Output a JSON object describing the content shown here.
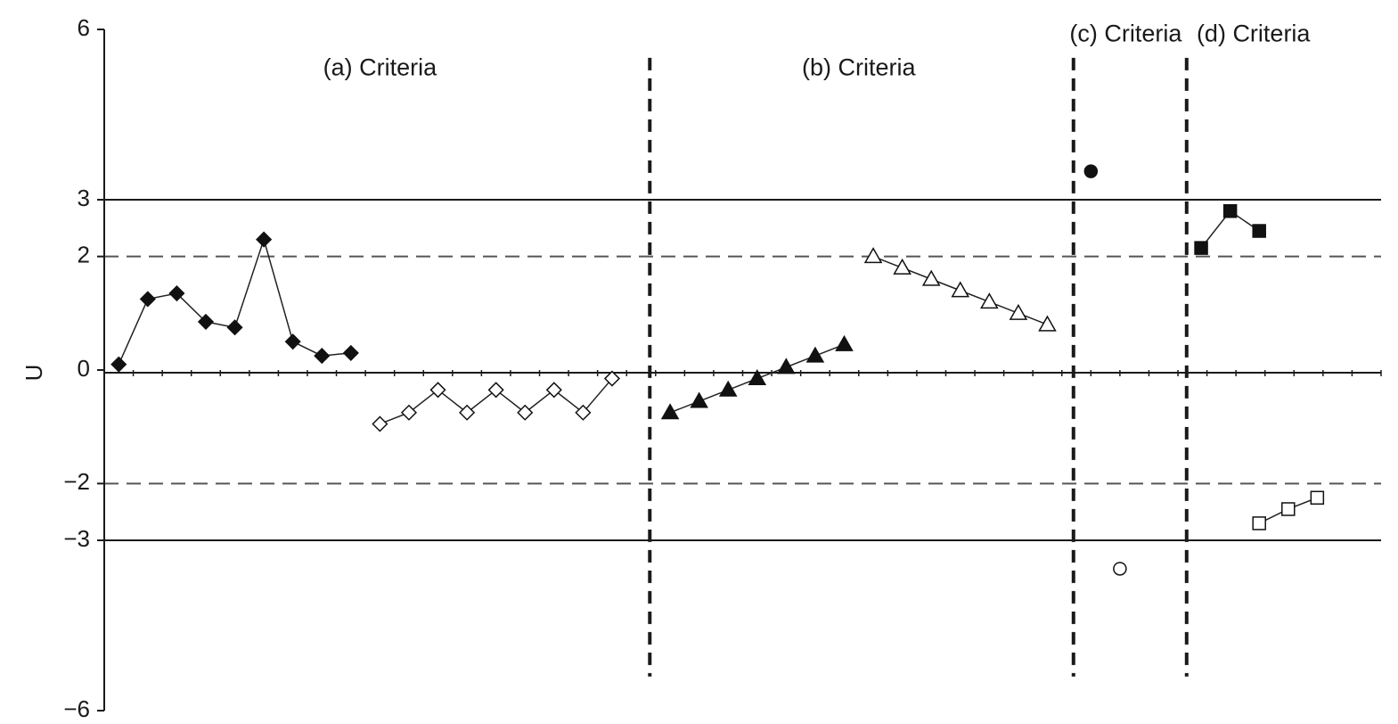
{
  "chart_data": {
    "type": "scatter",
    "title": "",
    "xlabel": "",
    "ylabel": "U",
    "ylim": [
      -6,
      6
    ],
    "xlim": [
      0,
      44
    ],
    "y_ticks": [
      {
        "value": 6,
        "label": "6"
      },
      {
        "value": 3,
        "label": "3"
      },
      {
        "value": 2,
        "label": "2"
      },
      {
        "value": 0,
        "label": "0"
      },
      {
        "value": -2,
        "label": "−2"
      },
      {
        "value": -3,
        "label": "−3"
      },
      {
        "value": -6,
        "label": "−6"
      }
    ],
    "reference_lines": [
      {
        "y": 3,
        "style": "solid"
      },
      {
        "y": 2,
        "style": "dashed"
      },
      {
        "y": -2,
        "style": "dashed"
      },
      {
        "y": -3,
        "style": "solid"
      }
    ],
    "grid": false,
    "section_dividers_x": [
      18.8,
      33.4,
      37.3
    ],
    "sections": [
      {
        "label": "(a) Criteria",
        "x": 9.5,
        "y": 5.3
      },
      {
        "label": "(b) Criteria",
        "x": 26.0,
        "y": 5.3
      },
      {
        "label": "(c) Criteria",
        "x": 35.2,
        "y": 5.9
      },
      {
        "label": "(d) Criteria",
        "x": 39.6,
        "y": 5.9
      }
    ],
    "series": [
      {
        "marker": "diamond",
        "filled": true,
        "connected": true,
        "points": [
          [
            0.5,
            0.1
          ],
          [
            1.5,
            1.25
          ],
          [
            2.5,
            1.35
          ],
          [
            3.5,
            0.85
          ],
          [
            4.5,
            0.75
          ],
          [
            5.5,
            2.3
          ],
          [
            6.5,
            0.5
          ],
          [
            7.5,
            0.25
          ],
          [
            8.5,
            0.3
          ]
        ]
      },
      {
        "marker": "diamond",
        "filled": false,
        "connected": true,
        "points": [
          [
            9.5,
            -0.95
          ],
          [
            10.5,
            -0.75
          ],
          [
            11.5,
            -0.35
          ],
          [
            12.5,
            -0.75
          ],
          [
            13.5,
            -0.35
          ],
          [
            14.5,
            -0.75
          ],
          [
            15.5,
            -0.35
          ],
          [
            16.5,
            -0.75
          ],
          [
            17.5,
            -0.15
          ]
        ]
      },
      {
        "marker": "triangle",
        "filled": true,
        "connected": true,
        "points": [
          [
            19.5,
            -0.75
          ],
          [
            20.5,
            -0.55
          ],
          [
            21.5,
            -0.35
          ],
          [
            22.5,
            -0.15
          ],
          [
            23.5,
            0.05
          ],
          [
            24.5,
            0.25
          ],
          [
            25.5,
            0.45
          ]
        ]
      },
      {
        "marker": "triangle",
        "filled": false,
        "connected": true,
        "points": [
          [
            26.5,
            2.0
          ],
          [
            27.5,
            1.8
          ],
          [
            28.5,
            1.6
          ],
          [
            29.5,
            1.4
          ],
          [
            30.5,
            1.2
          ],
          [
            31.5,
            1.0
          ],
          [
            32.5,
            0.8
          ]
        ]
      },
      {
        "marker": "circle",
        "filled": true,
        "connected": false,
        "points": [
          [
            34.0,
            3.5
          ]
        ]
      },
      {
        "marker": "circle",
        "filled": false,
        "connected": false,
        "points": [
          [
            35.0,
            -3.5
          ]
        ]
      },
      {
        "marker": "square",
        "filled": true,
        "connected": true,
        "points": [
          [
            37.8,
            2.15
          ],
          [
            38.8,
            2.8
          ],
          [
            39.8,
            2.45
          ]
        ]
      },
      {
        "marker": "square",
        "filled": false,
        "connected": true,
        "points": [
          [
            39.8,
            -2.7
          ],
          [
            40.8,
            -2.45
          ],
          [
            41.8,
            -2.25
          ]
        ]
      }
    ]
  }
}
